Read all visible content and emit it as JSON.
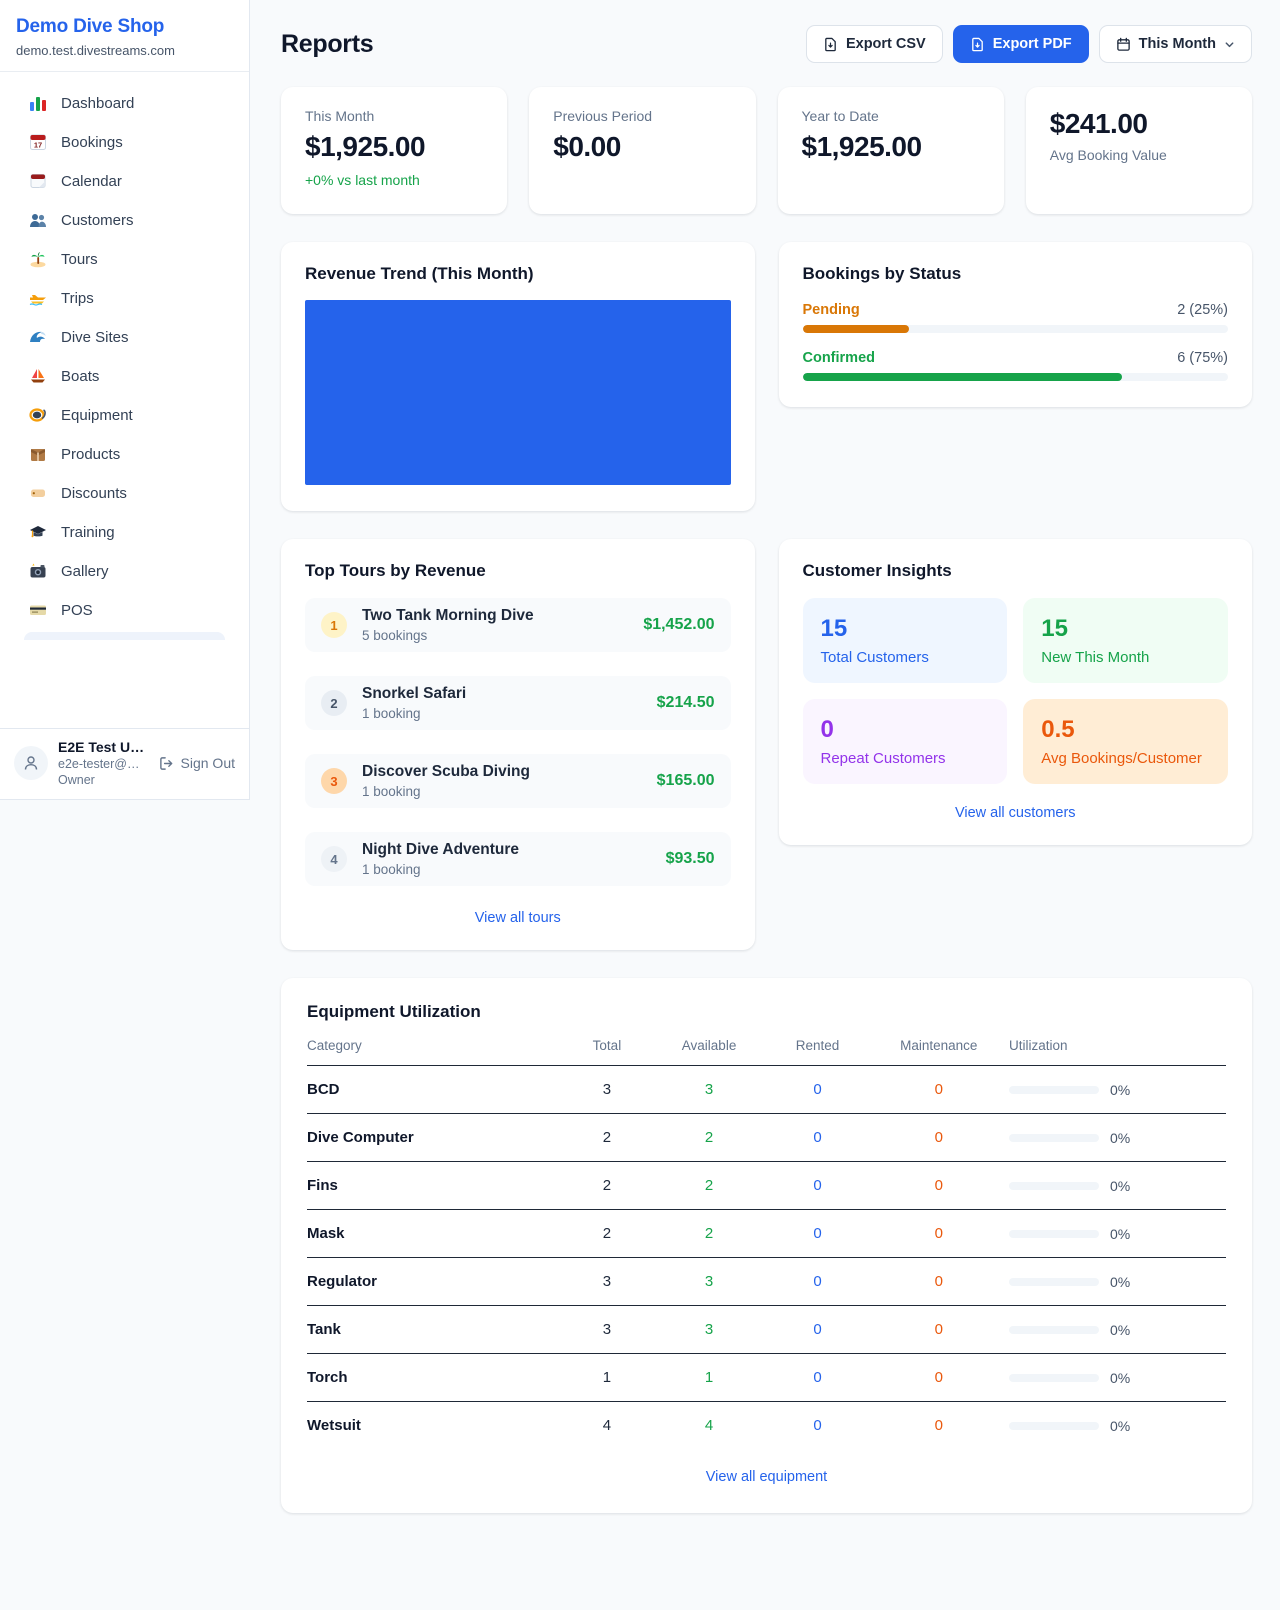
{
  "colors": {
    "accent_blue": "#2563eb",
    "green": "#16a34a",
    "pending_orange": "#d97706",
    "deep_orange": "#ea580c",
    "purple": "#9333ea",
    "page_bg": "#f8fafc"
  },
  "sidebar": {
    "shop_name": "Demo Dive Shop",
    "domain": "demo.test.divestreams.com",
    "items": [
      {
        "icon": "bar-chart",
        "label": "Dashboard"
      },
      {
        "icon": "calendar-17",
        "label": "Bookings"
      },
      {
        "icon": "tear-calendar",
        "label": "Calendar"
      },
      {
        "icon": "people",
        "label": "Customers"
      },
      {
        "icon": "island",
        "label": "Tours"
      },
      {
        "icon": "speedboat",
        "label": "Trips"
      },
      {
        "icon": "wave",
        "label": "Dive Sites"
      },
      {
        "icon": "sailboat",
        "label": "Boats"
      },
      {
        "icon": "dive-mask",
        "label": "Equipment"
      },
      {
        "icon": "package",
        "label": "Products"
      },
      {
        "icon": "tag",
        "label": "Discounts"
      },
      {
        "icon": "grad-cap",
        "label": "Training"
      },
      {
        "icon": "camera",
        "label": "Gallery"
      },
      {
        "icon": "credit-card",
        "label": "POS"
      }
    ],
    "user": {
      "name": "E2E Test U…",
      "email": "e2e-tester@…",
      "role": "Owner",
      "sign_out": "Sign Out"
    }
  },
  "header": {
    "title": "Reports",
    "export_csv": "Export CSV",
    "export_pdf": "Export PDF",
    "period": "This Month"
  },
  "stats": [
    {
      "label": "This Month",
      "value": "$1,925.00",
      "delta": "+0% vs last month"
    },
    {
      "label": "Previous Period",
      "value": "$0.00"
    },
    {
      "label": "Year to Date",
      "value": "$1,925.00"
    },
    {
      "label": "Avg Booking Value",
      "value": "$241.00"
    }
  ],
  "revenue_trend": {
    "title": "Revenue Trend (This Month)"
  },
  "chart_data": {
    "type": "bar",
    "title": "Revenue Trend (This Month)",
    "categories": [
      "This Month"
    ],
    "values": [
      1925
    ],
    "bar_color": "#2563eb",
    "axes_visible": false,
    "note": "single full-width bar, no axis labels visible"
  },
  "bookings_by_status": {
    "title": "Bookings by Status",
    "rows": [
      {
        "label": "Pending",
        "value": "2 (25%)",
        "pct": 25,
        "color": "#d97706"
      },
      {
        "label": "Confirmed",
        "value": "6 (75%)",
        "pct": 75,
        "color": "#16a34a"
      }
    ]
  },
  "top_tours": {
    "title": "Top Tours by Revenue",
    "rows": [
      {
        "rank": "1",
        "name": "Two Tank Morning Dive",
        "bookings": "5 bookings",
        "amount": "$1,452.00"
      },
      {
        "rank": "2",
        "name": "Snorkel Safari",
        "bookings": "1 booking",
        "amount": "$214.50"
      },
      {
        "rank": "3",
        "name": "Discover Scuba Diving",
        "bookings": "1 booking",
        "amount": "$165.00"
      },
      {
        "rank": "4",
        "name": "Night Dive Adventure",
        "bookings": "1 booking",
        "amount": "$93.50"
      }
    ],
    "link": "View all tours"
  },
  "customer_insights": {
    "title": "Customer Insights",
    "tiles": [
      {
        "value": "15",
        "label": "Total Customers",
        "theme": "blue"
      },
      {
        "value": "15",
        "label": "New This Month",
        "theme": "green"
      },
      {
        "value": "0",
        "label": "Repeat Customers",
        "theme": "purple"
      },
      {
        "value": "0.5",
        "label": "Avg Bookings/Customer",
        "theme": "orange"
      }
    ],
    "link": "View all customers"
  },
  "equipment": {
    "title": "Equipment Utilization",
    "columns": [
      "Category",
      "Total",
      "Available",
      "Rented",
      "Maintenance",
      "Utilization"
    ],
    "rows": [
      {
        "category": "BCD",
        "total": "3",
        "available": "3",
        "rented": "0",
        "maintenance": "0",
        "utilization": "0%"
      },
      {
        "category": "Dive Computer",
        "total": "2",
        "available": "2",
        "rented": "0",
        "maintenance": "0",
        "utilization": "0%"
      },
      {
        "category": "Fins",
        "total": "2",
        "available": "2",
        "rented": "0",
        "maintenance": "0",
        "utilization": "0%"
      },
      {
        "category": "Mask",
        "total": "2",
        "available": "2",
        "rented": "0",
        "maintenance": "0",
        "utilization": "0%"
      },
      {
        "category": "Regulator",
        "total": "3",
        "available": "3",
        "rented": "0",
        "maintenance": "0",
        "utilization": "0%"
      },
      {
        "category": "Tank",
        "total": "3",
        "available": "3",
        "rented": "0",
        "maintenance": "0",
        "utilization": "0%"
      },
      {
        "category": "Torch",
        "total": "1",
        "available": "1",
        "rented": "0",
        "maintenance": "0",
        "utilization": "0%"
      },
      {
        "category": "Wetsuit",
        "total": "4",
        "available": "4",
        "rented": "0",
        "maintenance": "0",
        "utilization": "0%"
      }
    ],
    "link": "View all equipment"
  }
}
